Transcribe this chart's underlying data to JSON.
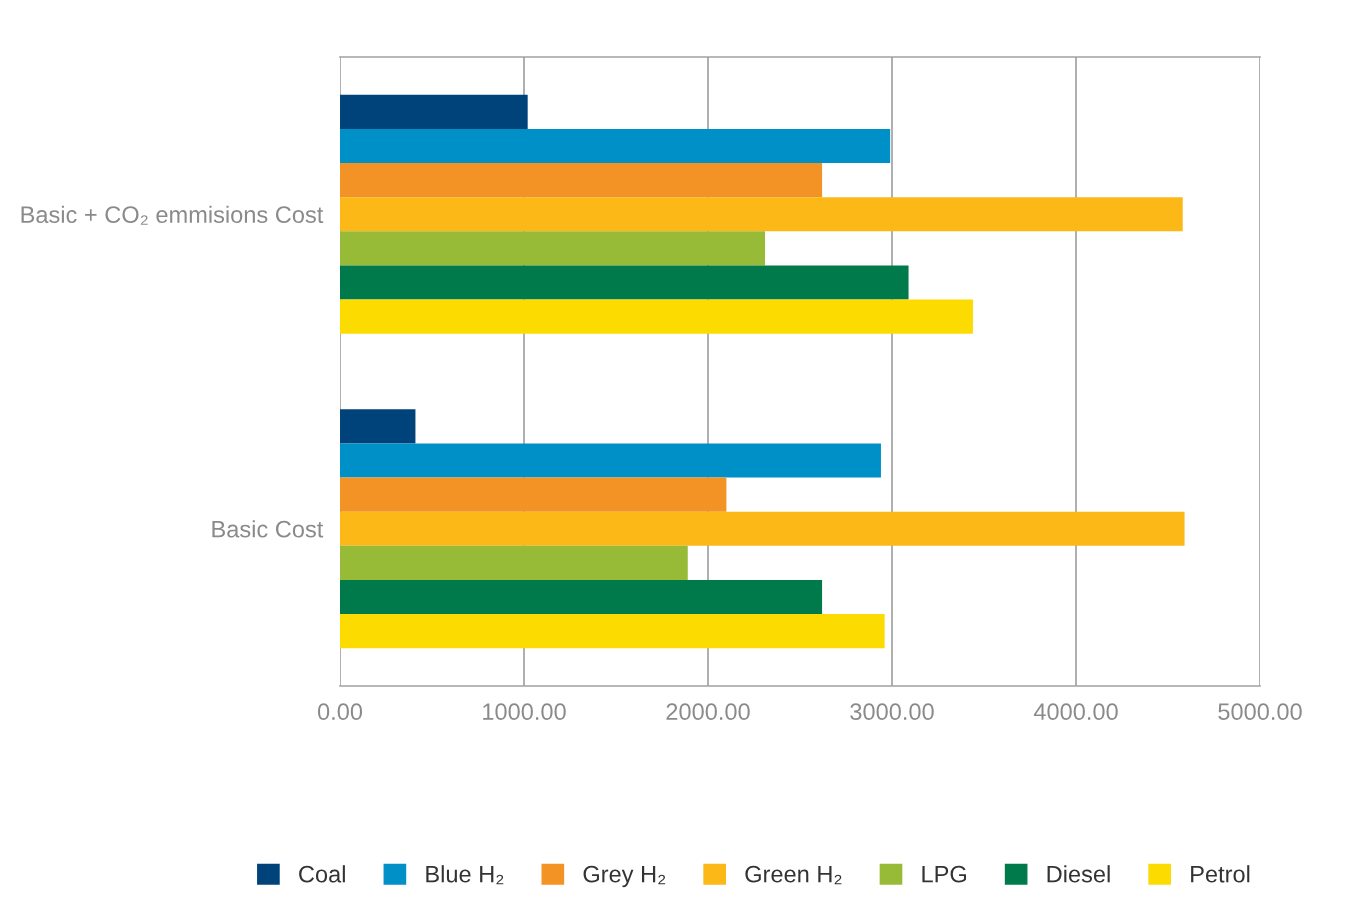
{
  "chart_data": {
    "type": "bar",
    "orientation": "horizontal",
    "categories": [
      "Basic + CO₂ emmisions Cost",
      "Basic Cost"
    ],
    "series": [
      {
        "name": "Coal",
        "color": "#00427a",
        "values": [
          1020,
          410
        ]
      },
      {
        "name": "Blue H₂",
        "color": "#0090c8",
        "values": [
          2990,
          2940
        ]
      },
      {
        "name": "Grey H₂",
        "color": "#f39325",
        "values": [
          2620,
          2100
        ]
      },
      {
        "name": "Green H₂",
        "color": "#fbb817",
        "values": [
          4580,
          4590
        ]
      },
      {
        "name": "LPG",
        "color": "#97bb37",
        "values": [
          2310,
          1890
        ]
      },
      {
        "name": "Diesel",
        "color": "#007a4b",
        "values": [
          3090,
          2620
        ]
      },
      {
        "name": "Petrol",
        "color": "#fcdb00",
        "values": [
          3440,
          2960
        ]
      }
    ],
    "xlim": [
      0,
      5000
    ],
    "xticks": [
      {
        "value": 0,
        "label": "0.00"
      },
      {
        "value": 1000,
        "label": "1000.00"
      },
      {
        "value": 2000,
        "label": "2000.00"
      },
      {
        "value": 3000,
        "label": "3000.00"
      },
      {
        "value": 4000,
        "label": "4000.00"
      },
      {
        "value": 5000,
        "label": "5000.00"
      }
    ],
    "grid": "x",
    "legend": "bottom"
  }
}
